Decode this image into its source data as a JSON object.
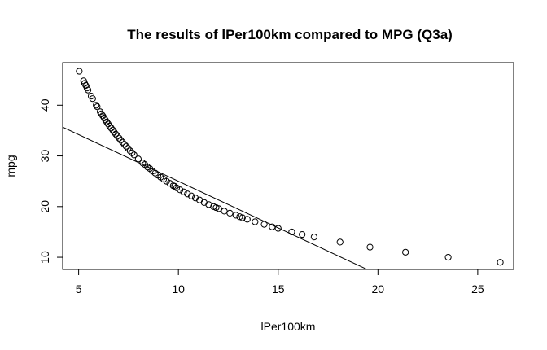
{
  "chart_data": {
    "type": "scatter",
    "title": "The results of lPer100km compared to MPG (Q3a)",
    "xlabel": "lPer100km",
    "ylabel": "mpg",
    "xlim": [
      4.2,
      26.8
    ],
    "ylim": [
      7.6,
      48.4
    ],
    "xticks": [
      5,
      10,
      15,
      20,
      25
    ],
    "yticks": [
      10,
      20,
      30,
      40
    ],
    "grid": false,
    "legend": "none",
    "marker": "open-circle",
    "series": [
      {
        "x": [
          5.03,
          5.25,
          5.3,
          5.36,
          5.42,
          5.47,
          5.63,
          5.7,
          5.88,
          5.93,
          6.08,
          6.14,
          6.21,
          6.28,
          6.34,
          6.41,
          6.48,
          6.55,
          6.63,
          6.71,
          6.78,
          6.86,
          6.94,
          7.03,
          7.11,
          7.2,
          7.29,
          7.38,
          7.48,
          7.58,
          7.68,
          7.78,
          7.99,
          8.21,
          8.32,
          8.45,
          8.57,
          8.7,
          8.84,
          8.97,
          9.11,
          9.26,
          9.41,
          9.57,
          9.74,
          9.81,
          9.91,
          10.08,
          10.26,
          10.45,
          10.65,
          10.85,
          11.06,
          11.29,
          11.52,
          11.76,
          11.89,
          12.02,
          12.3,
          12.58,
          12.88,
          13.07,
          13.21,
          13.45,
          13.84,
          14.3,
          14.7,
          15.0,
          15.68,
          16.2,
          16.8,
          18.1,
          19.6,
          21.38,
          23.52,
          26.13
        ],
        "y": [
          46.7,
          44.8,
          44.3,
          43.9,
          43.4,
          43.0,
          41.8,
          41.3,
          40.0,
          39.7,
          38.7,
          38.3,
          37.9,
          37.5,
          37.1,
          36.7,
          36.3,
          35.9,
          35.5,
          35.1,
          34.7,
          34.3,
          33.9,
          33.5,
          33.1,
          32.7,
          32.3,
          31.9,
          31.5,
          31.0,
          30.6,
          30.2,
          29.4,
          28.6,
          28.3,
          27.8,
          27.5,
          27.0,
          26.6,
          26.2,
          25.8,
          25.4,
          25.0,
          24.6,
          24.1,
          24.0,
          23.7,
          23.3,
          22.9,
          22.5,
          22.1,
          21.7,
          21.3,
          20.8,
          20.4,
          20.0,
          19.8,
          19.6,
          19.1,
          18.7,
          18.3,
          18.0,
          17.8,
          17.5,
          17.0,
          16.5,
          16.0,
          15.7,
          15.0,
          14.5,
          14.0,
          13.0,
          12.0,
          11.0,
          10.0,
          9.0
        ]
      }
    ],
    "fit_line": {
      "intercept": 43.4,
      "slope": -1.84
    }
  }
}
